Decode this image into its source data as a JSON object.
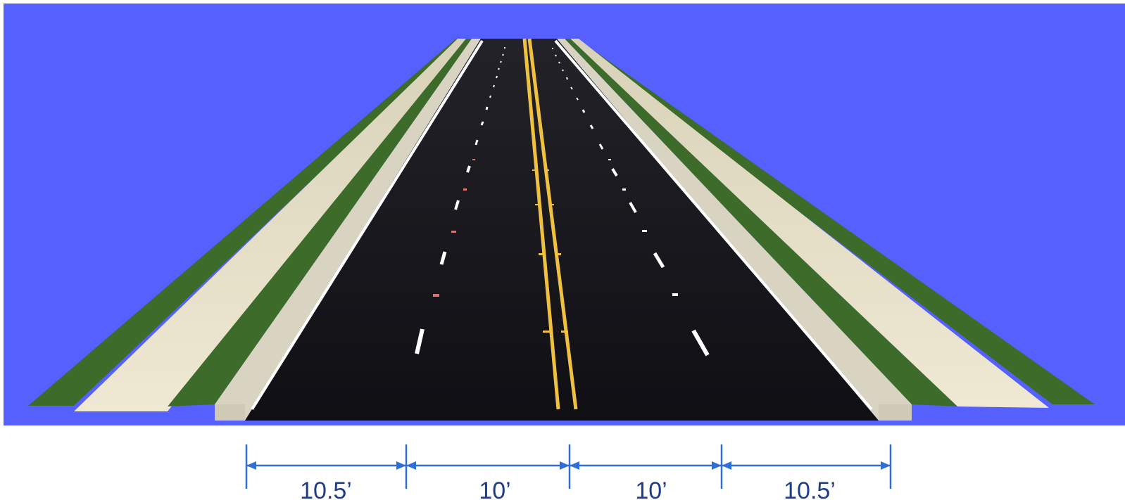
{
  "colors": {
    "sky": "#5560ff",
    "grass": "#3d6b2a",
    "sidewalk": "#e6dfc6",
    "curb": "#d9d4c2",
    "asphalt": "#16161c",
    "center_line": "#f0c040",
    "lane_line": "#ffffff",
    "dimension": "#2f6fd6"
  },
  "dimensions": [
    {
      "label": "10.5’"
    },
    {
      "label": "10’"
    },
    {
      "label": "10’"
    },
    {
      "label": "10.5’"
    }
  ]
}
